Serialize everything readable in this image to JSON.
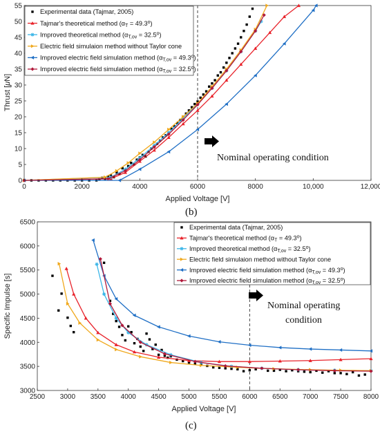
{
  "chart_data": [
    {
      "type": "line",
      "panel_label": "(b)",
      "xlabel": "Applied Voltage [V]",
      "ylabel": "Thrust [μN]",
      "xlim": [
        0,
        12000
      ],
      "ylim": [
        0,
        55
      ],
      "xticks": [
        0,
        2000,
        4000,
        6000,
        8000,
        10000,
        12000
      ],
      "xtick_labels": [
        "0",
        "2000",
        "4000",
        "6000",
        "8000",
        "10,000",
        "12,000"
      ],
      "yticks": [
        0,
        5,
        10,
        15,
        20,
        25,
        30,
        35,
        40,
        45,
        50,
        55
      ],
      "ytick_labels": [
        "0",
        "5",
        "10",
        "15",
        "20",
        "25",
        "30",
        "35",
        "40",
        "45",
        "50",
        "55"
      ],
      "grid": false,
      "legend_position": "top-left",
      "vline_x": 6000,
      "annotation": "Nominal operating condition",
      "series": [
        {
          "name": "Experimental data (Tajmar, 2005)",
          "color": "#000000",
          "marker": "square",
          "line": false,
          "x": [
            0,
            250,
            500,
            750,
            1000,
            1250,
            1500,
            1750,
            2000,
            2250,
            2500,
            2600,
            2700,
            2800,
            2900,
            3000,
            3100,
            3200,
            3300,
            3400,
            3500,
            3600,
            3700,
            3800,
            3900,
            4000,
            4100,
            4200,
            4300,
            4400,
            4500,
            4600,
            4700,
            4800,
            4900,
            5000,
            5100,
            5200,
            5300,
            5400,
            5500,
            5600,
            5700,
            5800,
            5900,
            6000,
            6100,
            6200,
            6300,
            6400,
            6500,
            6600,
            6700,
            6800,
            6900,
            7000,
            7100,
            7200,
            7300,
            7400,
            7500,
            7600,
            7700,
            7800,
            7900
          ],
          "y": [
            0,
            0,
            0,
            0,
            0,
            0,
            0,
            0,
            0,
            0,
            0,
            0.3,
            0.8,
            0.5,
            1.2,
            1.5,
            1.0,
            2.5,
            2.0,
            3.8,
            3.2,
            4.5,
            5.5,
            5.0,
            6.5,
            7.2,
            8.0,
            7.5,
            9.0,
            10.0,
            10.5,
            11.5,
            12.5,
            13.5,
            14.2,
            15.0,
            16.2,
            17.0,
            18.0,
            19.0,
            20.0,
            21.0,
            22.0,
            23.0,
            24.0,
            24.8,
            26.0,
            27.0,
            28.0,
            29.5,
            30.5,
            31.5,
            33.0,
            34.0,
            35.5,
            37.0,
            38.5,
            40.0,
            41.5,
            43.0,
            45.0,
            47.0,
            49.0,
            51.5,
            54.0
          ]
        },
        {
          "name": "Tajmar's theoretical method (αT = 49.3°)",
          "color": "#e8222a",
          "marker": "triangle-up",
          "line": true,
          "x": [
            0,
            3000,
            3500,
            4000,
            4500,
            5000,
            5500,
            6000,
            6500,
            7000,
            7500,
            8000,
            8500,
            9000,
            9500
          ],
          "y": [
            0,
            0.5,
            2.5,
            6,
            9.5,
            13.5,
            17.8,
            22.0,
            26.5,
            31.5,
            36.5,
            41.5,
            46.5,
            51.5,
            55
          ]
        },
        {
          "name": "Improved theoretical method (αT,ov = 32.5°)",
          "color": "#3bb6e8",
          "marker": "star",
          "line": true,
          "x": [
            0,
            3000,
            3500,
            4000,
            4500,
            5000,
            5500,
            6000,
            6500,
            7000,
            7500,
            8000,
            8200
          ],
          "y": [
            0,
            1,
            3.5,
            7,
            11,
            15,
            19.5,
            24.0,
            29,
            34.5,
            40.5,
            47,
            50
          ]
        },
        {
          "name": "Electric field simulaion method without Taylor cone",
          "color": "#f0a81c",
          "marker": "triangle-right",
          "line": true,
          "x": [
            0,
            2800,
            3200,
            3600,
            4000,
            4500,
            5000,
            5500,
            6000,
            6500,
            7000,
            7500,
            8000,
            8400
          ],
          "y": [
            0,
            1,
            3,
            5.5,
            8.5,
            12,
            16,
            20,
            24.2,
            29.5,
            35,
            41,
            47.5,
            55
          ]
        },
        {
          "name": "Improved electric field simulation method (αT,ov = 49.3°)",
          "color": "#1f6fc5",
          "marker": "triangle-left",
          "line": true,
          "x": [
            0,
            3300,
            4000,
            5000,
            6000,
            7000,
            8000,
            9000,
            10000,
            10100
          ],
          "y": [
            0,
            0,
            3.5,
            9,
            16,
            24,
            33,
            43,
            53.5,
            55
          ]
        },
        {
          "name": "Improved electric field simulation method (αT,ov = 32.5°)",
          "color": "#b0183a",
          "marker": "diamond",
          "line": true,
          "x": [
            0,
            2900,
            3500,
            4000,
            4500,
            5000,
            5500,
            6000,
            6500,
            7000,
            7500,
            8000,
            8300
          ],
          "y": [
            0,
            0.5,
            3,
            6.5,
            10.5,
            14.5,
            19,
            23.8,
            29,
            34.5,
            40.5,
            47,
            52
          ]
        }
      ]
    },
    {
      "type": "line",
      "panel_label": "(c)",
      "xlabel": "Applied Voltage [V]",
      "ylabel": "Specific Impulse [s]",
      "xlim": [
        2500,
        8000
      ],
      "ylim": [
        3000,
        6500
      ],
      "xticks": [
        2500,
        3000,
        3500,
        4000,
        4500,
        5000,
        5500,
        6000,
        6500,
        7000,
        7500,
        8000
      ],
      "xtick_labels": [
        "2500",
        "3000",
        "3500",
        "4000",
        "4500",
        "5000",
        "5500",
        "6000",
        "6500",
        "7000",
        "7500",
        "8000"
      ],
      "yticks": [
        3000,
        3500,
        4000,
        4500,
        5000,
        5500,
        6000,
        6500
      ],
      "ytick_labels": [
        "3000",
        "3500",
        "4000",
        "4500",
        "5000",
        "5500",
        "6000",
        "6500"
      ],
      "grid": false,
      "legend_position": "top-right",
      "vline_x": 6000,
      "annotation": "Nominal operating condition",
      "series": [
        {
          "name": "Experimental data (Tajmar, 2005)",
          "color": "#000000",
          "marker": "square",
          "line": false,
          "x": [
            2750,
            2850,
            2900,
            3000,
            3050,
            3100,
            3600,
            3700,
            3750,
            3800,
            3850,
            3900,
            3950,
            4000,
            4050,
            4100,
            4150,
            4200,
            4250,
            4300,
            4350,
            4400,
            4450,
            4500,
            4550,
            4600,
            4650,
            4700,
            4800,
            4900,
            5000,
            5100,
            5200,
            5300,
            5400,
            5500,
            5600,
            5700,
            5800,
            5900,
            6000,
            6100,
            6200,
            6300,
            6400,
            6500,
            6600,
            6700,
            6800,
            6900,
            7000,
            7100,
            7200,
            7300,
            7400,
            7500,
            7600,
            7700,
            7800,
            7900
          ],
          "y": [
            5380,
            4660,
            5010,
            4510,
            4340,
            4210,
            5650,
            4860,
            4590,
            4440,
            4320,
            4150,
            4040,
            4330,
            4210,
            3980,
            4070,
            3910,
            3820,
            4180,
            4060,
            3860,
            3950,
            3740,
            3840,
            3720,
            3680,
            3710,
            3640,
            3610,
            3580,
            3560,
            3540,
            3510,
            3480,
            3470,
            3460,
            3450,
            3440,
            3400,
            3420,
            3440,
            3460,
            3410,
            3410,
            3430,
            3400,
            3420,
            3400,
            3390,
            3380,
            3410,
            3370,
            3400,
            3360,
            3360,
            3340,
            3380,
            3310,
            3330
          ]
        },
        {
          "name": "Tajmar's theoretical method (αT = 49.3°)",
          "color": "#e8222a",
          "marker": "triangle-up",
          "line": true,
          "x": [
            2980,
            3100,
            3300,
            3500,
            3800,
            4100,
            4500,
            5000,
            5500,
            6000,
            6500,
            7000,
            7500,
            8000
          ],
          "y": [
            5530,
            5000,
            4500,
            4200,
            3950,
            3800,
            3690,
            3620,
            3600,
            3600,
            3610,
            3620,
            3640,
            3660
          ]
        },
        {
          "name": "Improved theoretical method (αT,ov = 32.5°)",
          "color": "#3bb6e8",
          "marker": "star",
          "line": true,
          "x": [
            3480,
            3600,
            3800,
            4000,
            4300,
            4700,
            5200,
            5700,
            6200,
            6800,
            7400,
            8000
          ],
          "y": [
            5620,
            5000,
            4500,
            4200,
            3950,
            3740,
            3580,
            3500,
            3460,
            3430,
            3420,
            3410
          ]
        },
        {
          "name": "Electric field simulaion method without Taylor cone",
          "color": "#f0a81c",
          "marker": "triangle-right",
          "line": true,
          "x": [
            2860,
            3000,
            3200,
            3500,
            3800,
            4200,
            4700,
            5200,
            5800,
            6400,
            7000,
            7500,
            8000
          ],
          "y": [
            5630,
            4800,
            4400,
            4050,
            3850,
            3700,
            3580,
            3520,
            3480,
            3450,
            3430,
            3420,
            3410
          ]
        },
        {
          "name": "Improved electric field simulation method (αT,ov = 49.3°)",
          "color": "#1f6fc5",
          "marker": "triangle-left",
          "line": true,
          "x": [
            3420,
            3600,
            3800,
            4100,
            4500,
            5000,
            5500,
            6000,
            6500,
            7000,
            7500,
            8000
          ],
          "y": [
            6120,
            5380,
            4900,
            4560,
            4320,
            4130,
            4010,
            3940,
            3890,
            3860,
            3840,
            3820
          ]
        },
        {
          "name": "Improved electric field simulation method (αT,ov = 32.5°)",
          "color": "#b0183a",
          "marker": "diamond",
          "line": true,
          "x": [
            3540,
            3700,
            3900,
            4200,
            4600,
            5100,
            5600,
            6200,
            6800,
            7400,
            8000
          ],
          "y": [
            5730,
            4800,
            4350,
            4000,
            3760,
            3600,
            3510,
            3460,
            3430,
            3410,
            3400
          ]
        }
      ]
    }
  ],
  "legend_b": [
    {
      "text": "Experimental data (Tajmar, 2005)"
    },
    {
      "text": "Tajmar's theoretical method (α",
      "sub": "T",
      "mid": " = 49.3",
      "sup": "o",
      "end": ")"
    },
    {
      "text": "Improved theoretical method (α",
      "sub": "T,ov",
      "mid": " = 32.5",
      "sup": "o",
      "end": ")"
    },
    {
      "text": "Electric field simulaion method without Taylor cone"
    },
    {
      "text": "Improved electric field simulation method (α",
      "sub": "T,ov",
      "mid": " = 49.3",
      "sup": "o",
      "end": ")"
    },
    {
      "text": "Improved electric field simulation method (α",
      "sub": "T,ov",
      "mid": " = 32.5",
      "sup": "o",
      "end": ")"
    }
  ],
  "legend_c": [
    {
      "text": "Experimental data (Tajmar, 2005)"
    },
    {
      "text": "Tajmar's theoretical method (α",
      "sub": "T",
      "mid": " = 49.3",
      "sup": "o",
      "end": ")"
    },
    {
      "text": "Improved theoretical method (α",
      "sub": "T,ov",
      "mid": " = 32.5",
      "sup": "o",
      "end": ")"
    },
    {
      "text": "Electric field simulaion method without Taylor cone"
    },
    {
      "text": "Improved electric field simulation method (α",
      "sub": "T,ov",
      "mid": " = 49.3",
      "sup": "o",
      "end": ")"
    },
    {
      "text": "Improved electric field simulation method (α",
      "sub": "T,ov",
      "mid": " = 32.5",
      "sup": "o",
      "end": ")"
    }
  ],
  "annotation_c_lines": [
    "Nominal operating",
    "condition"
  ],
  "ylabel_b_parts": {
    "pre": "Thrust [",
    "mu": "μ",
    "post": "N]"
  }
}
